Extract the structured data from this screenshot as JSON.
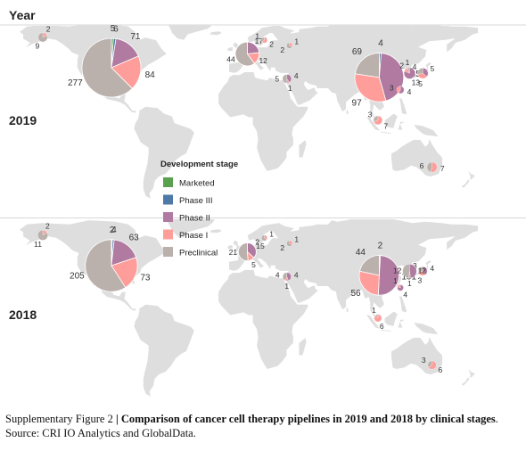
{
  "figure": {
    "header": "Year",
    "caption_label": "Supplementary Figure 2",
    "caption_separator": " | ",
    "caption_title": "Comparison of cancer cell therapy pipelines in 2019 and 2018 by clinical stages",
    "caption_source": ". Source: CRI IO Analytics and GlobalData."
  },
  "chart_data": {
    "type": "pie",
    "subtype": "pie-map",
    "legend": {
      "title": "Development stage",
      "placement": "center-left",
      "entries": [
        {
          "name": "Marketed",
          "color": "#59a14f"
        },
        {
          "name": "Phase III",
          "color": "#4e79a7"
        },
        {
          "name": "Phase II",
          "color": "#b07aa1"
        },
        {
          "name": "Phase I",
          "color": "#ff9d9a"
        },
        {
          "name": "Preclinical",
          "color": "#bab0ac"
        }
      ]
    },
    "panels": [
      {
        "year": "2019",
        "pies": [
          {
            "region": "North America",
            "lon": -98,
            "lat": 40,
            "slices": [
              {
                "stage": "Marketed",
                "value": 5
              },
              {
                "stage": "Phase III",
                "value": 6
              },
              {
                "stage": "Phase II",
                "value": 71
              },
              {
                "stage": "Phase I",
                "value": 84
              },
              {
                "stage": "Preclinical",
                "value": 277
              }
            ]
          },
          {
            "region": "China",
            "lon": 105,
            "lat": 33,
            "slices": [
              {
                "stage": "Phase III",
                "value": 4
              },
              {
                "stage": "Phase II",
                "value": 135
              },
              {
                "stage": "Phase I",
                "value": 97
              },
              {
                "stage": "Preclinical",
                "value": 69
              }
            ]
          },
          {
            "region": "Western Europe",
            "lon": 5,
            "lat": 50,
            "slices": [
              {
                "stage": "Phase II",
                "value": 17
              },
              {
                "stage": "Phase I",
                "value": 12
              },
              {
                "stage": "Preclinical",
                "value": 44
              }
            ]
          },
          {
            "region": "Alaska",
            "lon": -150,
            "lat": 62,
            "slices": [
              {
                "stage": "Phase I",
                "value": 2
              },
              {
                "stage": "Preclinical",
                "value": 9
              }
            ]
          },
          {
            "region": "Japan",
            "lon": 138,
            "lat": 36,
            "slices": [
              {
                "stage": "Phase II",
                "value": 5
              },
              {
                "stage": "Phase I",
                "value": 5
              },
              {
                "stage": "Preclinical",
                "value": 4
              }
            ]
          },
          {
            "region": "South Korea",
            "lon": 128,
            "lat": 36,
            "slices": [
              {
                "stage": "Phase II",
                "value": 13
              },
              {
                "stage": "Phase I",
                "value": 2
              },
              {
                "stage": "Preclinical",
                "value": 1
              }
            ]
          },
          {
            "region": "Taiwan",
            "lon": 121,
            "lat": 24,
            "slices": [
              {
                "stage": "Phase II",
                "value": 4
              },
              {
                "stage": "Phase I",
                "value": 3
              }
            ]
          },
          {
            "region": "Singapore",
            "lon": 104,
            "lat": 2,
            "slices": [
              {
                "stage": "Phase I",
                "value": 7
              },
              {
                "stage": "Preclinical",
                "value": 3
              }
            ]
          },
          {
            "region": "Australia",
            "lon": 145,
            "lat": -32,
            "slices": [
              {
                "stage": "Phase I",
                "value": 7
              },
              {
                "stage": "Preclinical",
                "value": 6
              }
            ]
          },
          {
            "region": "Israel",
            "lon": 35,
            "lat": 32,
            "slices": [
              {
                "stage": "Phase II",
                "value": 4
              },
              {
                "stage": "Phase I",
                "value": 1
              },
              {
                "stage": "Preclinical",
                "value": 5
              }
            ]
          },
          {
            "region": "Russia",
            "lon": 37,
            "lat": 56,
            "slices": [
              {
                "stage": "Phase I",
                "value": 1
              },
              {
                "stage": "Preclinical",
                "value": 2
              }
            ]
          },
          {
            "region": "Scandinavia",
            "lon": 18,
            "lat": 60,
            "slices": [
              {
                "stage": "Phase I",
                "value": 2
              },
              {
                "stage": "Preclinical",
                "value": 1
              }
            ]
          }
        ]
      },
      {
        "year": "2018",
        "pies": [
          {
            "region": "North America",
            "lon": -98,
            "lat": 40,
            "slices": [
              {
                "stage": "Marketed",
                "value": 2
              },
              {
                "stage": "Phase III",
                "value": 4
              },
              {
                "stage": "Phase II",
                "value": 63
              },
              {
                "stage": "Phase I",
                "value": 73
              },
              {
                "stage": "Preclinical",
                "value": 205
              }
            ]
          },
          {
            "region": "China",
            "lon": 105,
            "lat": 33,
            "slices": [
              {
                "stage": "Phase III",
                "value": 2
              },
              {
                "stage": "Phase II",
                "value": 101
              },
              {
                "stage": "Phase I",
                "value": 56
              },
              {
                "stage": "Preclinical",
                "value": 44
              }
            ]
          },
          {
            "region": "Western Europe",
            "lon": 5,
            "lat": 50,
            "slices": [
              {
                "stage": "Phase II",
                "value": 15
              },
              {
                "stage": "Phase I",
                "value": 5
              },
              {
                "stage": "Preclinical",
                "value": 21
              }
            ]
          },
          {
            "region": "Alaska",
            "lon": -150,
            "lat": 62,
            "slices": [
              {
                "stage": "Phase I",
                "value": 2
              },
              {
                "stage": "Preclinical",
                "value": 11
              }
            ]
          },
          {
            "region": "Japan",
            "lon": 138,
            "lat": 36,
            "slices": [
              {
                "stage": "Phase II",
                "value": 4
              },
              {
                "stage": "Phase I",
                "value": 3
              },
              {
                "stage": "Preclinical",
                "value": 3
              }
            ]
          },
          {
            "region": "South Korea",
            "lon": 128,
            "lat": 36,
            "slices": [
              {
                "stage": "Phase II",
                "value": 12
              },
              {
                "stage": "Phase I",
                "value": 1
              },
              {
                "stage": "Preclinical",
                "value": 12
              }
            ]
          },
          {
            "region": "Taiwan",
            "lon": 121,
            "lat": 24,
            "slices": [
              {
                "stage": "Phase II",
                "value": 4
              },
              {
                "stage": "Phase I",
                "value": 1
              }
            ]
          },
          {
            "region": "Singapore",
            "lon": 104,
            "lat": 2,
            "slices": [
              {
                "stage": "Phase I",
                "value": 6
              },
              {
                "stage": "Preclinical",
                "value": 1
              }
            ]
          },
          {
            "region": "Australia",
            "lon": 145,
            "lat": -32,
            "slices": [
              {
                "stage": "Phase I",
                "value": 6
              },
              {
                "stage": "Preclinical",
                "value": 3
              }
            ]
          },
          {
            "region": "Israel",
            "lon": 35,
            "lat": 32,
            "slices": [
              {
                "stage": "Phase II",
                "value": 4
              },
              {
                "stage": "Phase I",
                "value": 1
              },
              {
                "stage": "Preclinical",
                "value": 4
              }
            ]
          },
          {
            "region": "Russia",
            "lon": 37,
            "lat": 56,
            "slices": [
              {
                "stage": "Phase I",
                "value": 1
              },
              {
                "stage": "Preclinical",
                "value": 2
              }
            ]
          },
          {
            "region": "Scandinavia",
            "lon": 18,
            "lat": 60,
            "slices": [
              {
                "stage": "Phase I",
                "value": 1
              },
              {
                "stage": "Preclinical",
                "value": 2
              }
            ]
          }
        ]
      }
    ]
  }
}
